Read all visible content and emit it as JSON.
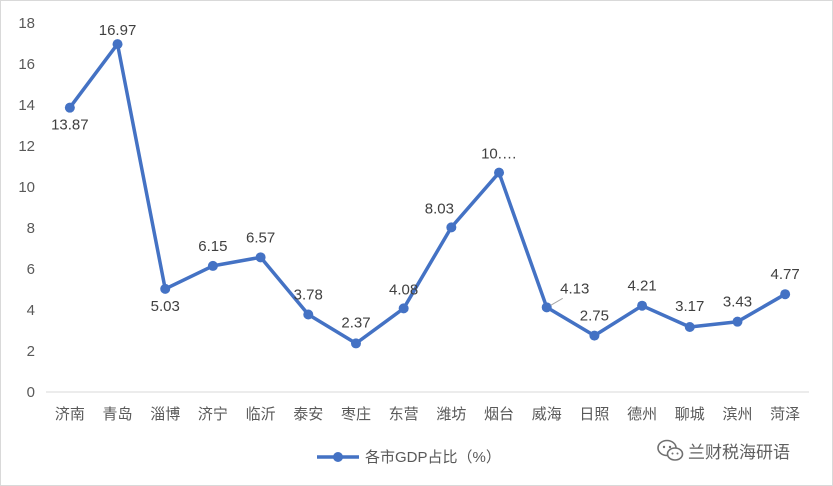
{
  "chart_data": {
    "type": "line",
    "categories": [
      "济南",
      "青岛",
      "淄博",
      "济宁",
      "临沂",
      "泰安",
      "枣庄",
      "东营",
      "潍坊",
      "烟台",
      "威海",
      "日照",
      "德州",
      "聊城",
      "滨州",
      "菏泽"
    ],
    "series": [
      {
        "name": "各市GDP占比（%）",
        "values": [
          13.87,
          16.97,
          5.03,
          6.15,
          6.57,
          3.78,
          2.37,
          4.08,
          8.03,
          10.7,
          4.13,
          2.75,
          4.21,
          3.17,
          3.43,
          4.77
        ],
        "labels": [
          "13.87",
          "16.97",
          "5.03",
          "6.15",
          "6.57",
          "3.78",
          "2.37",
          "4.08",
          "8.03",
          "10.…",
          "4.13",
          "2.75",
          "4.21",
          "3.17",
          "3.43",
          "4.77"
        ],
        "color": "#4472C4"
      }
    ],
    "ylim": [
      0,
      18
    ],
    "yticks": [
      "0",
      "2",
      "4",
      "6",
      "8",
      "10",
      "12",
      "14",
      "16",
      "18"
    ],
    "grid": false,
    "legend": "bottom",
    "title": "",
    "xlabel": "",
    "ylabel": ""
  },
  "watermark": {
    "text": "兰财税海研语",
    "icon": "wechat-icon",
    "color": "#606060"
  }
}
